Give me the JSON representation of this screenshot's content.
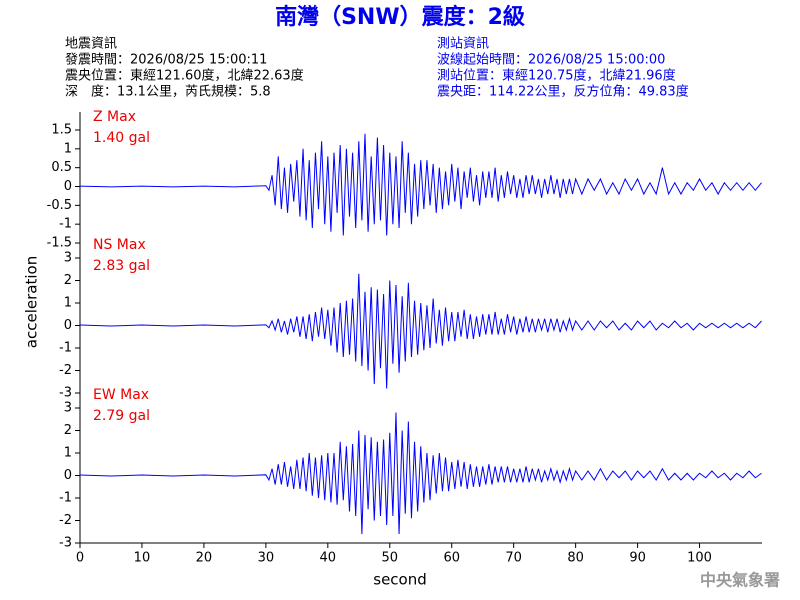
{
  "title": "南灣（SNW）震度：2級",
  "quake_info": {
    "heading": "地震資訊",
    "lines": [
      "發震時間：2026/08/25 15:00:11",
      "震央位置：東經121.60度，北緯22.63度",
      "深　度：13.1公里，芮氏規模：5.8"
    ]
  },
  "station_info": {
    "heading": "測站資訊",
    "lines": [
      "波線起始時間：2026/08/25 15:00:00",
      "測站位置：東經120.75度，北緯21.96度",
      "震央距：114.22公里，反方位角：49.83度"
    ]
  },
  "footer": "中央氣象署",
  "chart_data": {
    "type": "line",
    "xlabel": "second",
    "ylabel": "acceleration",
    "color": "#0000ff",
    "label_color": "#ee0000",
    "xlim": [
      0,
      110
    ],
    "xticks": [
      0,
      10,
      20,
      30,
      40,
      50,
      60,
      70,
      80,
      90,
      100
    ],
    "x": [
      0,
      5,
      10,
      15,
      20,
      25,
      30,
      30.5,
      31,
      31.5,
      32,
      32.5,
      33,
      33.5,
      34,
      34.5,
      35,
      35.5,
      36,
      36.5,
      37,
      37.5,
      38,
      38.5,
      39,
      39.5,
      40,
      40.5,
      41,
      41.5,
      42,
      42.5,
      43,
      43.5,
      44,
      44.5,
      45,
      45.5,
      46,
      46.5,
      47,
      47.5,
      48,
      48.5,
      49,
      49.5,
      50,
      50.5,
      51,
      51.5,
      52,
      52.5,
      53,
      53.5,
      54,
      54.5,
      55,
      55.5,
      56,
      56.5,
      57,
      57.5,
      58,
      58.5,
      59,
      59.5,
      60,
      60.5,
      61,
      61.5,
      62,
      62.5,
      63,
      63.5,
      64,
      64.5,
      65,
      65.5,
      66,
      66.5,
      67,
      67.5,
      68,
      68.5,
      69,
      69.5,
      70,
      70.5,
      71,
      71.5,
      72,
      72.5,
      73,
      73.5,
      74,
      74.5,
      75,
      75.5,
      76,
      76.5,
      77,
      77.5,
      78,
      78.5,
      79,
      79.5,
      80,
      81,
      82,
      83,
      84,
      85,
      86,
      87,
      88,
      89,
      90,
      91,
      92,
      93,
      94,
      95,
      96,
      97,
      98,
      99,
      100,
      101,
      102,
      103,
      104,
      105,
      106,
      107,
      108,
      109,
      110
    ],
    "series": [
      {
        "name": "Z Max",
        "annotation": "1.40 gal",
        "ylim": [
          -1.5,
          1.5
        ],
        "yticks": [
          -1.5,
          -1,
          -0.5,
          0,
          0.5,
          1,
          1.5
        ],
        "values": [
          0.01,
          -0.01,
          0.01,
          -0.01,
          0.01,
          -0.01,
          0.02,
          -0.1,
          0.3,
          -0.5,
          0.8,
          -0.6,
          0.5,
          -0.7,
          0.6,
          -0.4,
          0.7,
          -0.8,
          1.0,
          -0.9,
          0.7,
          -1.1,
          0.9,
          -0.6,
          1.2,
          -1.0,
          0.8,
          -1.2,
          0.9,
          -0.7,
          1.1,
          -1.3,
          1.0,
          -0.8,
          0.9,
          -1.1,
          1.2,
          -0.9,
          1.4,
          -1.2,
          0.8,
          -1.0,
          1.3,
          -0.9,
          1.1,
          -1.3,
          0.9,
          -1.0,
          0.8,
          -1.1,
          1.2,
          -0.7,
          0.9,
          -1.0,
          0.6,
          -0.8,
          0.7,
          -0.6,
          0.7,
          -0.5,
          0.6,
          -0.7,
          0.5,
          -0.6,
          0.4,
          -0.5,
          0.6,
          -0.4,
          0.5,
          -0.6,
          0.4,
          -0.3,
          0.5,
          -0.4,
          0.3,
          -0.5,
          0.4,
          -0.3,
          0.4,
          -0.3,
          0.5,
          -0.4,
          0.3,
          -0.3,
          0.4,
          -0.2,
          0.3,
          -0.3,
          0.2,
          -0.3,
          0.3,
          -0.2,
          0.3,
          -0.2,
          0.2,
          -0.3,
          0.2,
          -0.2,
          0.3,
          -0.2,
          0.2,
          -0.3,
          0.2,
          -0.2,
          0.2,
          -0.2,
          0.2,
          -0.2,
          0.2,
          -0.1,
          0.2,
          -0.2,
          0.1,
          -0.2,
          0.2,
          -0.1,
          0.2,
          -0.2,
          0.1,
          -0.2,
          0.5,
          -0.2,
          0.1,
          -0.2,
          0.1,
          -0.1,
          0.2,
          -0.1,
          0.1,
          -0.2,
          0.1,
          -0.1,
          0.1,
          -0.1,
          0.1,
          -0.1,
          0.1
        ]
      },
      {
        "name": "NS Max",
        "annotation": "2.83 gal",
        "ylim": [
          -3,
          3
        ],
        "yticks": [
          -3,
          -2,
          -1,
          0,
          1,
          2,
          3
        ],
        "values": [
          0.02,
          -0.02,
          0.02,
          -0.02,
          0.02,
          -0.02,
          0.03,
          -0.1,
          0.2,
          -0.2,
          0.3,
          -0.3,
          0.2,
          -0.4,
          0.3,
          -0.3,
          0.4,
          -0.5,
          0.4,
          -0.6,
          0.5,
          -0.7,
          0.6,
          -0.5,
          0.8,
          -0.6,
          0.7,
          -0.9,
          0.8,
          -1.2,
          1.0,
          -1.4,
          1.1,
          -1.3,
          1.2,
          -1.6,
          2.3,
          -1.8,
          1.5,
          -2.0,
          1.7,
          -2.6,
          1.6,
          -1.9,
          1.4,
          -2.8,
          2.0,
          -1.7,
          1.8,
          -2.1,
          1.3,
          -1.6,
          1.9,
          -1.4,
          1.1,
          -1.3,
          1.0,
          -1.1,
          0.9,
          -1.0,
          1.2,
          -0.8,
          0.7,
          -0.9,
          0.8,
          -0.7,
          0.6,
          -0.7,
          0.6,
          -0.5,
          0.7,
          -0.6,
          0.5,
          -0.6,
          0.4,
          -0.5,
          0.5,
          -0.4,
          0.5,
          -0.4,
          0.6,
          -0.4,
          0.3,
          -0.4,
          0.5,
          -0.3,
          0.4,
          -0.4,
          0.3,
          -0.3,
          0.4,
          -0.3,
          0.3,
          -0.3,
          0.3,
          -0.2,
          0.3,
          -0.3,
          0.3,
          -0.2,
          0.3,
          -0.3,
          0.2,
          -0.2,
          0.3,
          -0.2,
          0.2,
          -0.2,
          0.2,
          -0.2,
          0.2,
          -0.1,
          0.2,
          -0.2,
          0.1,
          -0.2,
          0.2,
          -0.1,
          0.2,
          -0.2,
          0.1,
          -0.1,
          0.2,
          -0.1,
          0.1,
          -0.2,
          0.1,
          -0.1,
          0.1,
          -0.1,
          0.1,
          -0.1,
          0.1,
          -0.1,
          0.1,
          -0.1,
          0.2
        ]
      },
      {
        "name": "EW Max",
        "annotation": "2.79 gal",
        "ylim": [
          -3,
          3
        ],
        "yticks": [
          -3,
          -2,
          -1,
          0,
          1,
          2,
          3
        ],
        "values": [
          0.02,
          -0.02,
          0.02,
          -0.02,
          0.02,
          -0.02,
          0.03,
          -0.2,
          0.3,
          -0.4,
          0.5,
          -0.4,
          0.6,
          -0.5,
          0.4,
          -0.6,
          0.7,
          -0.6,
          0.8,
          -0.7,
          1.0,
          -0.9,
          0.8,
          -1.0,
          0.9,
          -1.1,
          1.0,
          -1.2,
          1.0,
          -1.3,
          1.5,
          -1.1,
          1.3,
          -1.6,
          1.4,
          -1.8,
          2.0,
          -2.6,
          1.8,
          -1.5,
          1.7,
          -2.0,
          1.5,
          -1.8,
          1.6,
          -2.2,
          1.9,
          -1.8,
          2.8,
          -2.6,
          2.0,
          -1.7,
          2.4,
          -1.9,
          1.5,
          -1.6,
          1.3,
          -1.2,
          1.0,
          -1.1,
          0.9,
          -0.8,
          1.0,
          -0.7,
          0.8,
          -0.7,
          0.6,
          -0.6,
          0.7,
          -0.5,
          0.6,
          -0.6,
          0.5,
          -0.5,
          0.4,
          -0.5,
          0.4,
          -0.4,
          0.5,
          -0.4,
          0.4,
          -0.3,
          0.4,
          -0.3,
          0.4,
          -0.3,
          0.3,
          -0.3,
          0.3,
          -0.3,
          0.4,
          -0.3,
          0.3,
          -0.2,
          0.3,
          -0.3,
          0.2,
          -0.2,
          0.3,
          -0.2,
          0.2,
          -0.3,
          0.2,
          -0.2,
          0.3,
          -0.2,
          0.2,
          -0.2,
          0.2,
          -0.2,
          0.3,
          -0.2,
          0.2,
          -0.1,
          0.2,
          -0.2,
          0.2,
          -0.1,
          0.2,
          -0.2,
          0.3,
          -0.2,
          0.1,
          -0.2,
          0.1,
          -0.2,
          0.1,
          -0.1,
          0.2,
          -0.1,
          0.1,
          -0.2,
          0.1,
          -0.1,
          0.2,
          -0.1,
          0.1
        ]
      }
    ]
  }
}
